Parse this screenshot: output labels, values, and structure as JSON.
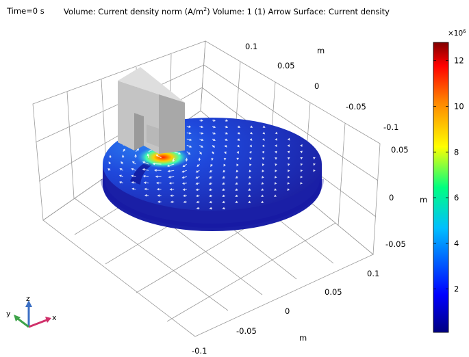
{
  "header": {
    "time": "Time=0 s",
    "description_prefix": "Volume: Current density norm (A/m",
    "description_sup": "2",
    "description_suffix": ")  Volume: 1 (1)  Arrow Surface: Current density"
  },
  "chart_data": {
    "type": "heatmap",
    "axes": {
      "x": {
        "ticks": [
          "-0.1",
          "-0.05",
          "0",
          "0.05",
          "0.1"
        ],
        "unit_label": "m"
      },
      "y": {
        "ticks": [
          "0.1",
          "0.05",
          "0",
          "-0.05",
          "-0.1"
        ],
        "unit_label": "m"
      },
      "z": {
        "ticks": [
          "0.05",
          "0",
          "-0.05"
        ],
        "unit_label": "m"
      }
    },
    "colorbar": {
      "multiplier": "×10",
      "multiplier_exp": "6",
      "ticks": [
        "12",
        "10",
        "8",
        "6",
        "4",
        "2"
      ],
      "tick_values": [
        12,
        10,
        8,
        6,
        4,
        2
      ],
      "range": [
        0.1,
        12.8
      ],
      "colormap": [
        "#000080",
        "#0000ff",
        "#00bfff",
        "#00ff80",
        "#ffff00",
        "#ff8000",
        "#ff0000",
        "#800000"
      ]
    },
    "triad": {
      "x": "x",
      "y": "y",
      "z": "z"
    }
  }
}
